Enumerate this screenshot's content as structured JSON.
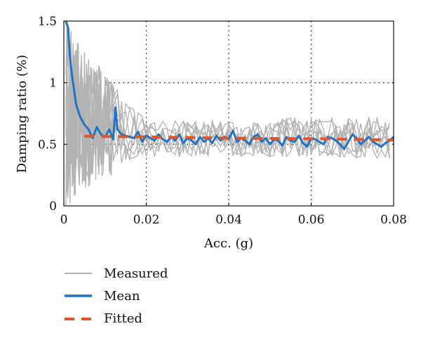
{
  "chart_data": {
    "type": "line",
    "title": "",
    "xlabel": "Acc. (g)",
    "ylabel": "Damping ratio (%)",
    "xlim": [
      0,
      0.08
    ],
    "ylim": [
      0,
      1.5
    ],
    "x_ticks": [
      0,
      0.02,
      0.04,
      0.06,
      0.08
    ],
    "x_tick_labels": [
      "0",
      "0.02",
      "0.04",
      "0.06",
      "0.08"
    ],
    "y_ticks": [
      0,
      0.5,
      1,
      1.5
    ],
    "y_tick_labels": [
      "0",
      "0.5",
      "1",
      "1.5"
    ],
    "grid": "dotted",
    "legend_position": "bottom",
    "series": [
      {
        "name": "Measured",
        "color": "#b3b3b3",
        "style": "solid",
        "note_x_range": [
          0.0005,
          0.08
        ],
        "approx_values": [
          {
            "x": 0.001,
            "y_range": [
              0.0,
              1.5
            ]
          },
          {
            "x": 0.005,
            "y_range": [
              0.15,
              1.25
            ]
          },
          {
            "x": 0.01,
            "y_range": [
              0.2,
              1.1
            ]
          },
          {
            "x": 0.015,
            "y_range": [
              0.35,
              0.85
            ]
          },
          {
            "x": 0.02,
            "y_range": [
              0.4,
              0.7
            ]
          },
          {
            "x": 0.04,
            "y_range": [
              0.4,
              0.7
            ]
          },
          {
            "x": 0.06,
            "y_range": [
              0.4,
              0.72
            ]
          },
          {
            "x": 0.08,
            "y_range": [
              0.38,
              0.72
            ]
          }
        ]
      },
      {
        "name": "Mean",
        "color": "#1f74c6",
        "style": "solid",
        "x": [
          0.0005,
          0.001,
          0.0015,
          0.002,
          0.003,
          0.004,
          0.005,
          0.006,
          0.007,
          0.008,
          0.009,
          0.01,
          0.011,
          0.012,
          0.0125,
          0.013,
          0.014,
          0.015,
          0.016,
          0.017,
          0.018,
          0.019,
          0.02,
          0.021,
          0.022,
          0.023,
          0.024,
          0.025,
          0.026,
          0.027,
          0.028,
          0.029,
          0.03,
          0.031,
          0.032,
          0.033,
          0.034,
          0.035,
          0.036,
          0.037,
          0.038,
          0.039,
          0.04,
          0.041,
          0.042,
          0.043,
          0.044,
          0.045,
          0.046,
          0.047,
          0.048,
          0.049,
          0.05,
          0.051,
          0.052,
          0.053,
          0.054,
          0.055,
          0.056,
          0.057,
          0.058,
          0.059,
          0.06,
          0.061,
          0.062,
          0.063,
          0.064,
          0.065,
          0.066,
          0.067,
          0.068,
          0.069,
          0.07,
          0.071,
          0.072,
          0.073,
          0.074,
          0.075,
          0.076,
          0.077,
          0.078,
          0.079,
          0.08
        ],
        "values": [
          1.5,
          1.45,
          1.2,
          1.05,
          0.82,
          0.72,
          0.66,
          0.62,
          0.55,
          0.64,
          0.58,
          0.56,
          0.62,
          0.54,
          0.8,
          0.62,
          0.58,
          0.57,
          0.56,
          0.55,
          0.6,
          0.52,
          0.57,
          0.55,
          0.53,
          0.58,
          0.54,
          0.52,
          0.56,
          0.53,
          0.58,
          0.51,
          0.55,
          0.53,
          0.5,
          0.56,
          0.52,
          0.55,
          0.51,
          0.57,
          0.53,
          0.56,
          0.54,
          0.61,
          0.52,
          0.55,
          0.53,
          0.5,
          0.56,
          0.58,
          0.52,
          0.55,
          0.5,
          0.54,
          0.53,
          0.49,
          0.56,
          0.53,
          0.52,
          0.57,
          0.51,
          0.48,
          0.55,
          0.54,
          0.52,
          0.5,
          0.56,
          0.55,
          0.53,
          0.5,
          0.46,
          0.52,
          0.58,
          0.55,
          0.5,
          0.53,
          0.56,
          0.52,
          0.5,
          0.48,
          0.51,
          0.53,
          0.56
        ]
      },
      {
        "name": "Fitted",
        "color": "#e0562a",
        "style": "dashed",
        "x": [
          0.005,
          0.02,
          0.04,
          0.06,
          0.08
        ],
        "values": [
          0.565,
          0.56,
          0.55,
          0.545,
          0.535
        ]
      }
    ]
  }
}
